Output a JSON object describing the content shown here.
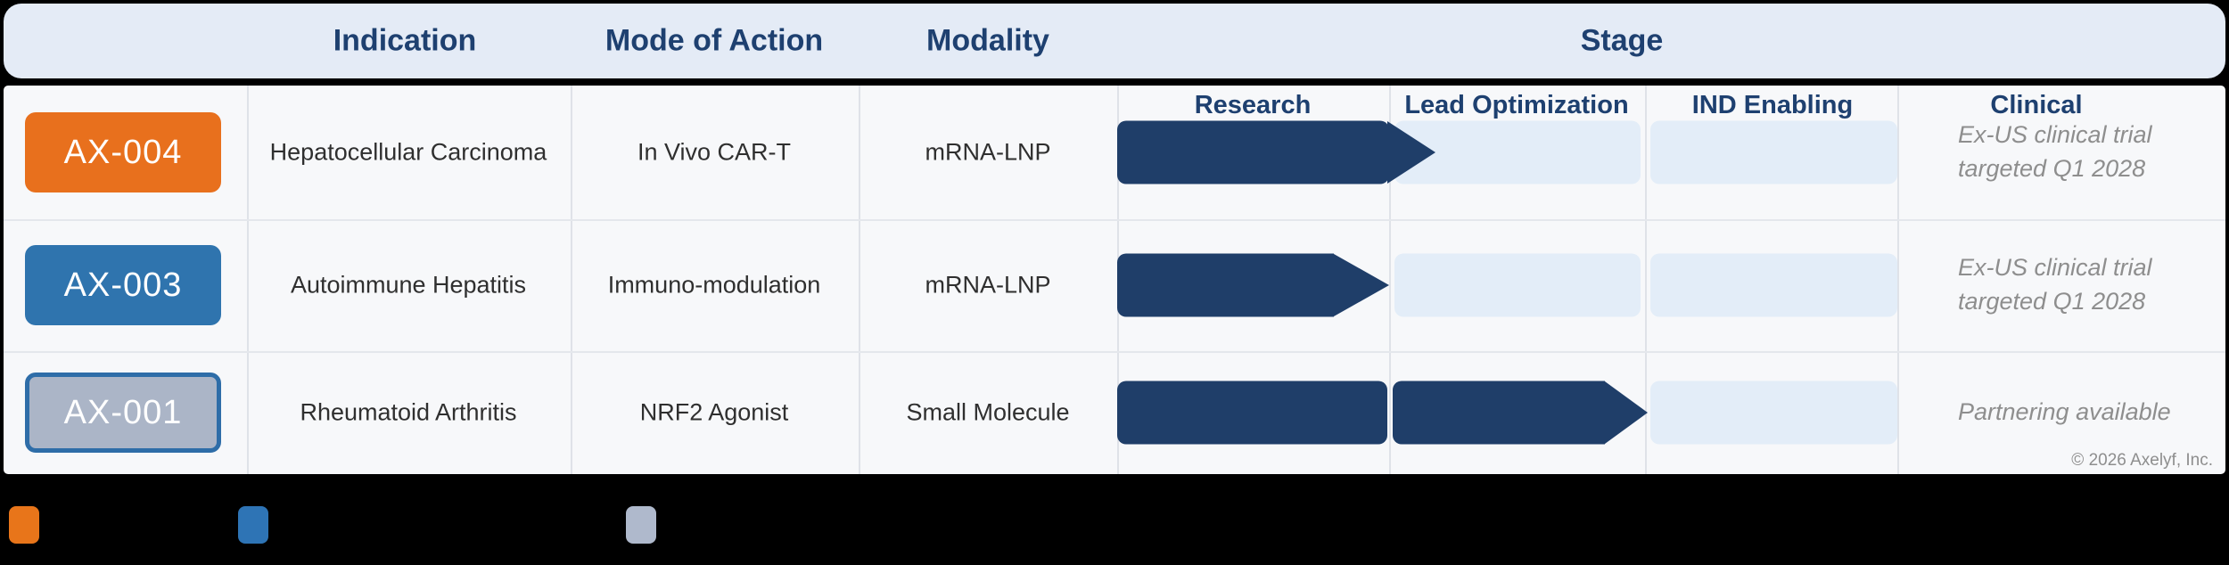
{
  "chart_data": {
    "type": "table",
    "title": "Stage",
    "columns": [
      "Indication",
      "Mode of Action",
      "Modality",
      "Stage"
    ],
    "stage_columns": [
      "Research",
      "Lead Optimization",
      "IND Enabling",
      "Clinical"
    ],
    "rows": [
      {
        "program_id": "AX-004",
        "indication": "Hepatocellular Carcinoma",
        "mode_of_action": "In Vivo CAR-T",
        "modality": "mRNA-LNP",
        "stages_completed": 1.15,
        "stage_progress": {
          "research": "complete",
          "lead_optimization": "entering",
          "ind_enabling": "not-started",
          "clinical": "not-started"
        },
        "clinical_note": "Ex-US clinical trial targeted Q1 2028"
      },
      {
        "program_id": "AX-003",
        "indication": "Autoimmune Hepatitis",
        "mode_of_action": "Immuno-modulation",
        "modality": "mRNA-LNP",
        "stages_completed": 1.0,
        "stage_progress": {
          "research": "complete",
          "lead_optimization": "not-started",
          "ind_enabling": "not-started",
          "clinical": "not-started"
        },
        "clinical_note": "Ex-US clinical trial targeted Q1 2028"
      },
      {
        "program_id": "AX-001",
        "indication": "Rheumatoid Arthritis",
        "mode_of_action": "NRF2 Agonist",
        "modality": "Small Molecule",
        "stages_completed": 2.0,
        "stage_progress": {
          "research": "complete",
          "lead_optimization": "complete",
          "ind_enabling": "not-started",
          "clinical": "not-started"
        },
        "clinical_note": "Partnering available"
      }
    ],
    "legend_position": "bottom",
    "grid": true
  },
  "header": {
    "col_indication": "Indication",
    "col_moa": "Mode of Action",
    "col_modality": "Modality",
    "col_stage": "Stage"
  },
  "stage_headers": {
    "research": "Research",
    "lead_optimization": "Lead Optimization",
    "ind_enabling": "IND Enabling",
    "clinical": "Clinical"
  },
  "rows": [
    {
      "program_id": "AX-004",
      "badge_color": "#E8701D",
      "indication": "Hepatocellular Carcinoma",
      "mode_of_action": "In Vivo CAR-T",
      "modality": "mRNA-LNP",
      "clinical_note": "Ex-US clinical trial targeted Q1 2028"
    },
    {
      "program_id": "AX-003",
      "badge_color": "#2F74AE",
      "indication": "Autoimmune Hepatitis",
      "mode_of_action": "Immuno-modulation",
      "modality": "mRNA-LNP",
      "clinical_note": "Ex-US clinical trial targeted Q1 2028"
    },
    {
      "program_id": "AX-001",
      "badge_color": "#ABB5C7",
      "badge_border_color": "#2E6DA8",
      "indication": "Rheumatoid Arthritis",
      "mode_of_action": "NRF2 Agonist",
      "modality": "Small Molecule",
      "clinical_note": "Partnering available"
    }
  ],
  "footer": {
    "copyright": "© 2026 Axelyf, Inc."
  },
  "legend": {
    "chips": [
      {
        "name": "orange-chip",
        "color": "#E8751A"
      },
      {
        "name": "blue-chip",
        "color": "#2E74B5"
      },
      {
        "name": "gray-chip",
        "color": "#AFB9CC"
      }
    ]
  },
  "colors": {
    "page_background": "#000000",
    "header_band": "#E4EBF6",
    "header_text": "#1E4070",
    "body_background": "#F7F8FA",
    "bar_complete": "#1F3E69",
    "bar_track": "#E3EDF8",
    "note_text": "#8E8E8E"
  }
}
